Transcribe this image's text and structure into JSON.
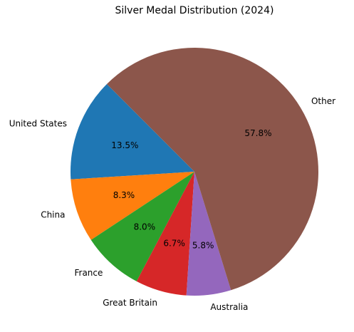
{
  "chart_data": {
    "type": "pie",
    "title": "Silver Medal Distribution (2024)",
    "slices": [
      {
        "label": "United States",
        "percent": 13.5,
        "pct_text": "13.5%",
        "color": "#1f77b4"
      },
      {
        "label": "China",
        "percent": 8.3,
        "pct_text": "8.3%",
        "color": "#ff7f0e"
      },
      {
        "label": "France",
        "percent": 8.0,
        "pct_text": "8.0%",
        "color": "#2ca02c"
      },
      {
        "label": "Great Britain",
        "percent": 6.7,
        "pct_text": "6.7%",
        "color": "#d62728"
      },
      {
        "label": "Australia",
        "percent": 5.8,
        "pct_text": "5.8%",
        "color": "#9467bd"
      },
      {
        "label": "Other",
        "percent": 57.8,
        "pct_text": "57.8%",
        "color": "#8c564b"
      }
    ],
    "start_angle_deg": 135,
    "direction": "counterclockwise",
    "legend": "none"
  }
}
